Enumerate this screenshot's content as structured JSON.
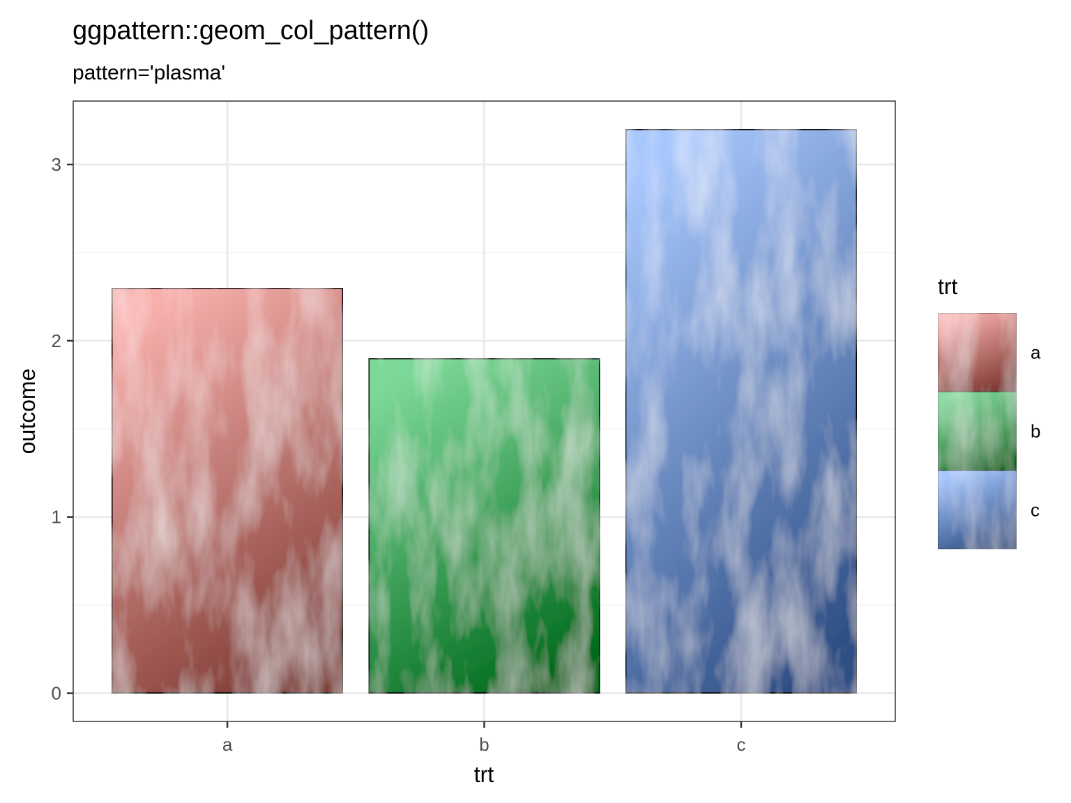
{
  "chart_data": {
    "type": "bar",
    "title": "ggpattern::geom_col_pattern()",
    "subtitle": "pattern='plasma'",
    "xlabel": "trt",
    "ylabel": "outcome",
    "categories": [
      "a",
      "b",
      "c"
    ],
    "values": [
      2.3,
      1.9,
      3.2
    ],
    "ylim": [
      -0.16,
      3.36
    ],
    "yticks": [
      "0",
      "1",
      "2",
      "3"
    ],
    "grid": true,
    "legend": {
      "title": "trt",
      "position": "right",
      "entries": [
        "a",
        "b",
        "c"
      ]
    },
    "colors": {
      "a": {
        "light": "#f8b0ad",
        "dark": "#7f3a33"
      },
      "b": {
        "light": "#7cd898",
        "dark": "#006a1c"
      },
      "c": {
        "light": "#a6c6fc",
        "dark": "#2e4f85"
      }
    },
    "panel_background": "#ffffff",
    "gridline_color": "#ebebeb",
    "bar_outline": "#000000"
  }
}
